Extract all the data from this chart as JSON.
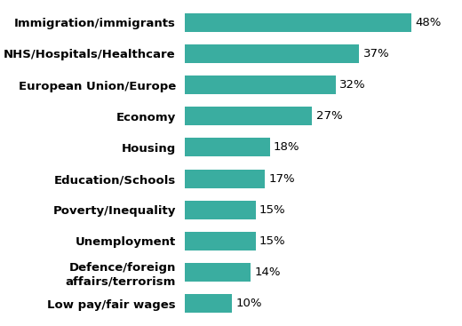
{
  "categories": [
    "Low pay/fair wages",
    "Defence/foreign\naffairs/terrorism",
    "Unemployment",
    "Poverty/Inequality",
    "Education/Schools",
    "Housing",
    "Economy",
    "European Union/Europe",
    "NHS/Hospitals/Healthcare",
    "Immigration/immigrants"
  ],
  "values": [
    10,
    14,
    15,
    15,
    17,
    18,
    27,
    32,
    37,
    48
  ],
  "bar_color": "#3aada0",
  "label_color": "#000000",
  "background_color": "#ffffff",
  "tick_fontsize": 9.5,
  "value_fontsize": 9.5,
  "xlim": [
    0,
    58
  ],
  "bar_height": 0.6
}
